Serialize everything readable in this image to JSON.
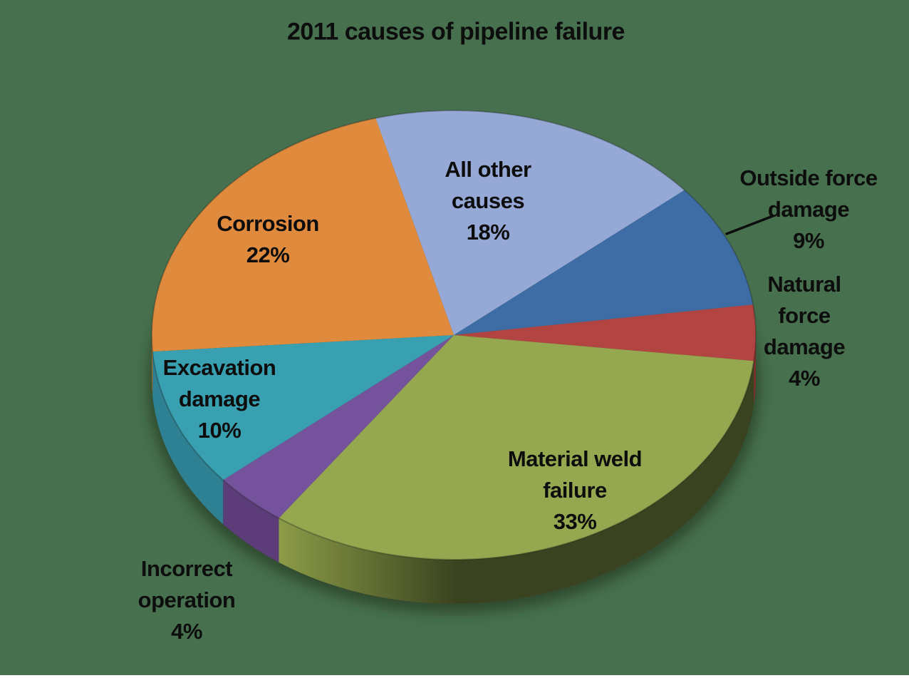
{
  "background_color": "#47714E",
  "title": "2011 causes of pipeline failure",
  "text_color": "#0d0d0d",
  "chart_data": {
    "type": "pie",
    "title": "2011 causes of pipeline failure",
    "style": "3d-pie",
    "start_angle_deg_clockwise_from_top": -15,
    "legend_position": "none",
    "data_labels": "category name and percentage, inside or beside slices",
    "slices": [
      {
        "label": "All other causes",
        "value_pct": 18,
        "color": "#96A9D6",
        "label_lines": [
          "All other",
          "causes",
          "18%"
        ]
      },
      {
        "label": "Outside force damage",
        "value_pct": 9,
        "color": "#3E6CA5",
        "label_lines": [
          "Outside force",
          "damage",
          "9%"
        ],
        "has_leader_line": true
      },
      {
        "label": "Natural force damage",
        "value_pct": 4,
        "color": "#B24441",
        "side_color": "#7E2F2D",
        "label_lines": [
          "Natural",
          "force",
          "damage",
          "4%"
        ]
      },
      {
        "label": "Material weld failure",
        "value_pct": 33,
        "color": "#96A84F",
        "side_gradient": [
          "#97A74D",
          "#3A431F"
        ],
        "label_lines": [
          "Material weld",
          "failure",
          "33%"
        ]
      },
      {
        "label": "Incorrect operation",
        "value_pct": 4,
        "color": "#75529C",
        "side_color": "#5C3D7A",
        "label_lines": [
          "Incorrect",
          "operation",
          "4%"
        ]
      },
      {
        "label": "Excavation damage",
        "value_pct": 10,
        "color": "#38A0B0",
        "side_color": "#2E8193",
        "label_lines": [
          "Excavation",
          "damage",
          "10%"
        ]
      },
      {
        "label": "Corrosion",
        "value_pct": 22,
        "color": "#E08A3E",
        "side_color": "#A8641F",
        "label_lines": [
          "Corrosion",
          "22%"
        ]
      }
    ]
  }
}
